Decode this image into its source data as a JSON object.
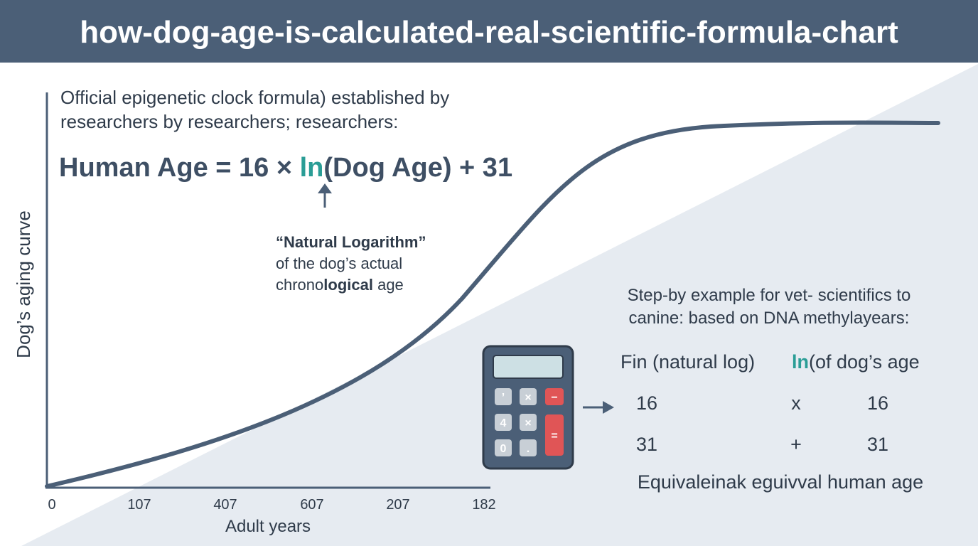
{
  "header": {
    "title": "how-dog-age-is-calculated-real-scientific-formula-chart"
  },
  "intro": {
    "lines": [
      "Official epigenetic clock formula) established by",
      "researchers by researchers; researchers:"
    ]
  },
  "formula": {
    "before": "Human Age = 16 × ",
    "ln": "ln",
    "after": "(Dog Age) + 31"
  },
  "annotation": {
    "line1": "“Natural Logarithm”",
    "line2": "of the dog’s actual",
    "line3_start": "chrono",
    "line3_bold": "logical",
    "line3_end": " age"
  },
  "axes": {
    "y_label": "Dog’s aging curve",
    "x_label": "Adult years",
    "x_ticks": [
      "0",
      "107",
      "407",
      "607",
      "207",
      "182"
    ]
  },
  "calculator": {
    "keys": [
      "’",
      "×",
      "−",
      "4",
      "×",
      "=",
      "0",
      "."
    ]
  },
  "example": {
    "heading": [
      "Step-by example  for  vet- scientifics to",
      "canine: based on DNA methylayears:"
    ],
    "row0": {
      "left": "Fin (natural log)",
      "ln": "ln",
      "right": "(of dog’s age"
    },
    "rows": [
      [
        "16",
        "x",
        "16"
      ],
      [
        "31",
        "+",
        "31"
      ]
    ],
    "footer": "Equivaleinak eguivval human age"
  }
}
